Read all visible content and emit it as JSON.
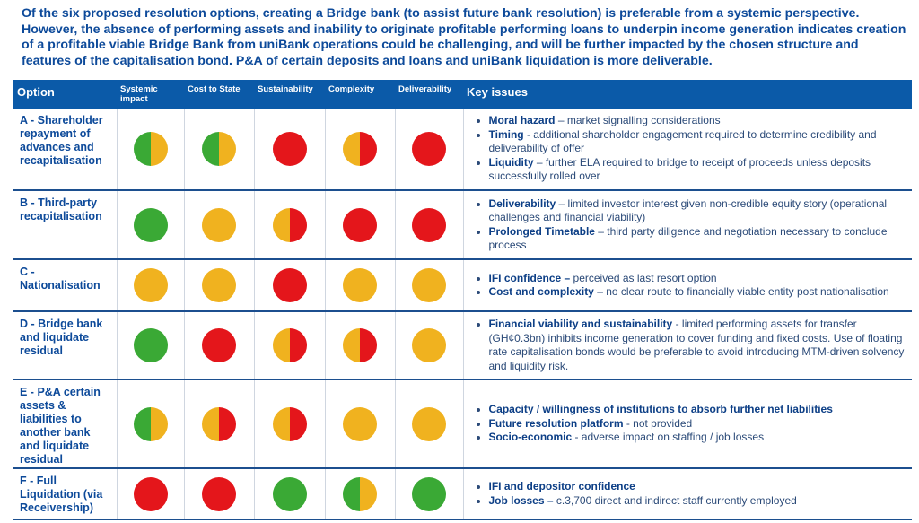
{
  "intro": "Of the six proposed resolution options, creating a Bridge bank (to assist future bank resolution) is preferable from a systemic perspective. However, the absence of performing assets and inability to originate profitable performing loans to underpin income generation indicates creation of a profitable viable Bridge Bank from uniBank operations could be challenging, and will be further impacted by the chosen structure and features of the capitalisation bond.  P&A of certain deposits and loans and uniBank liquidation is more deliverable.",
  "table": {
    "headers": [
      "Option",
      "Systemic impact",
      "Cost to State",
      "Sustainability",
      "Complexity",
      "Deliverability",
      "Key issues"
    ],
    "colors": {
      "green": "#3aa935",
      "amber": "#f0b21f",
      "red": "#e4161b"
    },
    "rows": [
      {
        "option": "A - Shareholder repayment of advances and recapitalisation",
        "ratings": [
          [
            "green",
            "amber"
          ],
          [
            "green",
            "amber"
          ],
          [
            "red"
          ],
          [
            "amber",
            "red"
          ],
          [
            "red"
          ]
        ],
        "issues": [
          {
            "term": "Moral hazard",
            "text": " – market signalling considerations"
          },
          {
            "term": "Timing",
            "text": " - additional shareholder engagement required to determine credibility and deliverability of offer"
          },
          {
            "term": "Liquidity",
            "text": " – further ELA required to bridge to receipt of proceeds unless deposits successfully rolled over"
          }
        ]
      },
      {
        "option": "B - Third-party recapitalisation",
        "ratings": [
          [
            "green"
          ],
          [
            "amber"
          ],
          [
            "amber",
            "red"
          ],
          [
            "red"
          ],
          [
            "red"
          ]
        ],
        "issues": [
          {
            "term": "Deliverability",
            "text": " – limited investor interest given non-credible equity story (operational challenges and financial viability)"
          },
          {
            "term": "Prolonged Timetable",
            "text": " – third party diligence and negotiation necessary to conclude process"
          }
        ]
      },
      {
        "option": "C - Nationalisation",
        "ratings": [
          [
            "amber"
          ],
          [
            "amber"
          ],
          [
            "red"
          ],
          [
            "amber"
          ],
          [
            "amber"
          ]
        ],
        "issues": [
          {
            "term": "IFI confidence –",
            "text": " perceived as last resort option"
          },
          {
            "term": "Cost and complexity",
            "text": " – no clear route to financially viable entity post nationalisation"
          }
        ]
      },
      {
        "option": "D - Bridge bank and liquidate residual",
        "ratings": [
          [
            "green"
          ],
          [
            "red"
          ],
          [
            "amber",
            "red"
          ],
          [
            "amber",
            "red"
          ],
          [
            "amber"
          ]
        ],
        "issues": [
          {
            "term": "Financial viability and sustainability",
            "text": " - limited performing assets for transfer (GH¢0.3bn) inhibits income generation to cover funding and fixed costs. Use of floating rate capitalisation bonds would be preferable to avoid introducing MTM-driven solvency and liquidity risk."
          }
        ]
      },
      {
        "option": "E - P&A certain assets & liabilities to another bank and liquidate residual",
        "ratings": [
          [
            "green",
            "amber"
          ],
          [
            "amber",
            "red"
          ],
          [
            "amber",
            "red"
          ],
          [
            "amber"
          ],
          [
            "amber"
          ]
        ],
        "issues": [
          {
            "term": "Capacity / willingness of institutions to absorb further net liabilities"
          },
          {
            "term": "Future resolution platform",
            "text": " - not provided"
          },
          {
            "term": "Socio-economic",
            "text": " - adverse impact on staffing / job losses"
          }
        ]
      },
      {
        "option": "F - Full Liquidation (via Receivership)",
        "ratings": [
          [
            "red"
          ],
          [
            "red"
          ],
          [
            "green"
          ],
          [
            "green",
            "amber"
          ],
          [
            "green"
          ]
        ],
        "issues": [
          {
            "term": "IFI and depositor confidence"
          },
          {
            "term": "Job losses –",
            "text": " c.3,700 direct and indirect staff currently employed"
          }
        ]
      }
    ]
  }
}
